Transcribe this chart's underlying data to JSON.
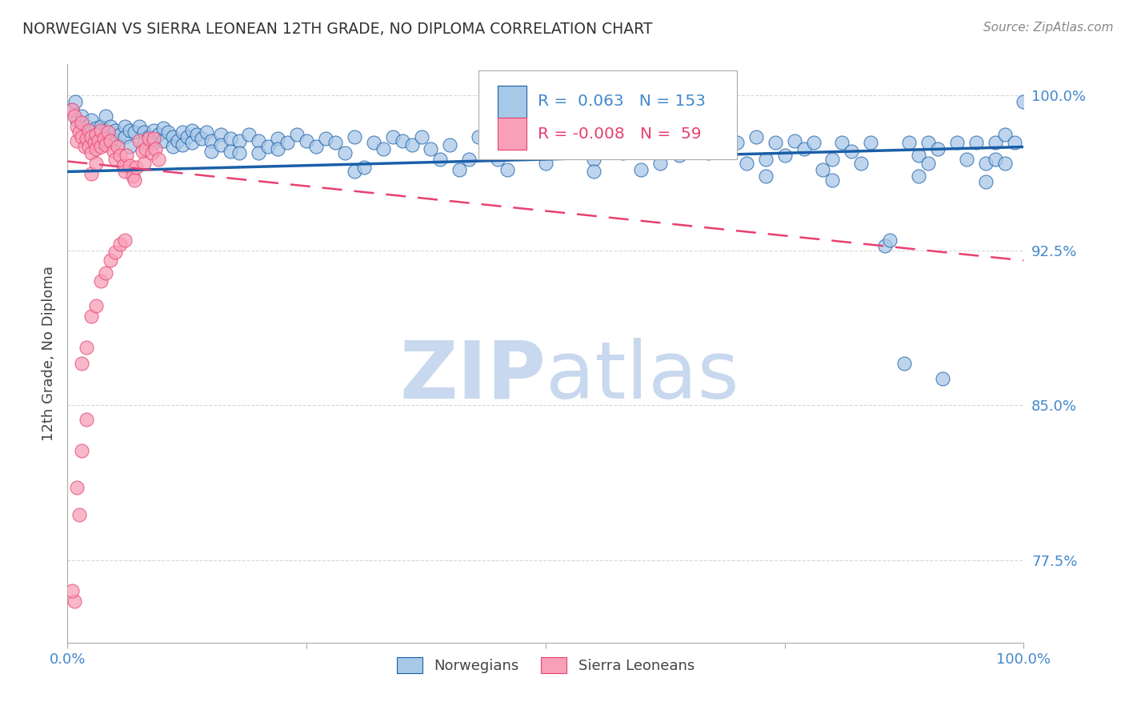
{
  "title": "NORWEGIAN VS SIERRA LEONEAN 12TH GRADE, NO DIPLOMA CORRELATION CHART",
  "source_text": "Source: ZipAtlas.com",
  "ylabel": "12th Grade, No Diploma",
  "legend_labels": [
    "Norwegians",
    "Sierra Leoneans"
  ],
  "xlim": [
    0.0,
    1.0
  ],
  "ylim": [
    0.735,
    1.015
  ],
  "yticks": [
    0.775,
    0.85,
    0.925,
    1.0
  ],
  "ytick_labels": [
    "77.5%",
    "85.0%",
    "92.5%",
    "100.0%"
  ],
  "xtick_labels": [
    "0.0%",
    "100.0%"
  ],
  "r_norwegian": 0.063,
  "n_norwegian": 153,
  "r_sierraleone": -0.008,
  "n_sierraleone": 59,
  "blue_color": "#a8c8e8",
  "blue_line_color": "#1a5fa8",
  "pink_color": "#f8a0b8",
  "pink_line_color": "#e84070",
  "grid_color": "#cccccc",
  "watermark_color": "#c8d8ee",
  "title_color": "#333333",
  "axis_label_color": "#4488cc",
  "norw_trend_x": [
    0.0,
    1.0
  ],
  "norw_trend_y": [
    0.963,
    0.975
  ],
  "sl_trend_x": [
    0.0,
    1.0
  ],
  "sl_trend_y": [
    0.968,
    0.92
  ],
  "norwegian_points": [
    [
      0.005,
      0.993
    ],
    [
      0.008,
      0.997
    ],
    [
      0.01,
      0.988
    ],
    [
      0.015,
      0.99
    ],
    [
      0.02,
      0.985
    ],
    [
      0.025,
      0.988
    ],
    [
      0.03,
      0.984
    ],
    [
      0.03,
      0.978
    ],
    [
      0.035,
      0.985
    ],
    [
      0.04,
      0.983
    ],
    [
      0.04,
      0.977
    ],
    [
      0.04,
      0.99
    ],
    [
      0.045,
      0.985
    ],
    [
      0.05,
      0.983
    ],
    [
      0.05,
      0.978
    ],
    [
      0.055,
      0.981
    ],
    [
      0.06,
      0.985
    ],
    [
      0.06,
      0.98
    ],
    [
      0.065,
      0.983
    ],
    [
      0.065,
      0.975
    ],
    [
      0.07,
      0.982
    ],
    [
      0.075,
      0.985
    ],
    [
      0.08,
      0.982
    ],
    [
      0.08,
      0.977
    ],
    [
      0.085,
      0.98
    ],
    [
      0.09,
      0.983
    ],
    [
      0.09,
      0.977
    ],
    [
      0.095,
      0.981
    ],
    [
      0.1,
      0.984
    ],
    [
      0.1,
      0.978
    ],
    [
      0.105,
      0.982
    ],
    [
      0.11,
      0.98
    ],
    [
      0.11,
      0.975
    ],
    [
      0.115,
      0.978
    ],
    [
      0.12,
      0.982
    ],
    [
      0.12,
      0.976
    ],
    [
      0.125,
      0.98
    ],
    [
      0.13,
      0.983
    ],
    [
      0.13,
      0.977
    ],
    [
      0.135,
      0.981
    ],
    [
      0.14,
      0.979
    ],
    [
      0.145,
      0.982
    ],
    [
      0.15,
      0.978
    ],
    [
      0.15,
      0.973
    ],
    [
      0.16,
      0.981
    ],
    [
      0.16,
      0.976
    ],
    [
      0.17,
      0.979
    ],
    [
      0.17,
      0.973
    ],
    [
      0.18,
      0.978
    ],
    [
      0.18,
      0.972
    ],
    [
      0.19,
      0.981
    ],
    [
      0.2,
      0.978
    ],
    [
      0.2,
      0.972
    ],
    [
      0.21,
      0.975
    ],
    [
      0.22,
      0.979
    ],
    [
      0.22,
      0.974
    ],
    [
      0.23,
      0.977
    ],
    [
      0.24,
      0.981
    ],
    [
      0.25,
      0.978
    ],
    [
      0.26,
      0.975
    ],
    [
      0.27,
      0.979
    ],
    [
      0.28,
      0.977
    ],
    [
      0.29,
      0.972
    ],
    [
      0.3,
      0.98
    ],
    [
      0.3,
      0.963
    ],
    [
      0.31,
      0.965
    ],
    [
      0.32,
      0.977
    ],
    [
      0.33,
      0.974
    ],
    [
      0.34,
      0.98
    ],
    [
      0.35,
      0.978
    ],
    [
      0.36,
      0.976
    ],
    [
      0.37,
      0.98
    ],
    [
      0.38,
      0.974
    ],
    [
      0.39,
      0.969
    ],
    [
      0.4,
      0.976
    ],
    [
      0.41,
      0.964
    ],
    [
      0.42,
      0.969
    ],
    [
      0.43,
      0.98
    ],
    [
      0.44,
      0.976
    ],
    [
      0.45,
      0.969
    ],
    [
      0.46,
      0.964
    ],
    [
      0.48,
      0.98
    ],
    [
      0.49,
      0.986
    ],
    [
      0.5,
      0.976
    ],
    [
      0.5,
      0.967
    ],
    [
      0.51,
      0.983
    ],
    [
      0.52,
      0.99
    ],
    [
      0.53,
      0.986
    ],
    [
      0.54,
      0.976
    ],
    [
      0.55,
      0.969
    ],
    [
      0.55,
      0.963
    ],
    [
      0.56,
      0.98
    ],
    [
      0.57,
      0.976
    ],
    [
      0.58,
      0.972
    ],
    [
      0.59,
      0.98
    ],
    [
      0.6,
      0.974
    ],
    [
      0.6,
      0.964
    ],
    [
      0.61,
      0.978
    ],
    [
      0.62,
      0.967
    ],
    [
      0.63,
      0.977
    ],
    [
      0.64,
      0.98
    ],
    [
      0.64,
      0.971
    ],
    [
      0.65,
      0.977
    ],
    [
      0.66,
      0.98
    ],
    [
      0.67,
      0.972
    ],
    [
      0.68,
      0.978
    ],
    [
      0.69,
      0.974
    ],
    [
      0.7,
      0.977
    ],
    [
      0.71,
      0.967
    ],
    [
      0.72,
      0.98
    ],
    [
      0.73,
      0.969
    ],
    [
      0.73,
      0.961
    ],
    [
      0.74,
      0.977
    ],
    [
      0.75,
      0.971
    ],
    [
      0.76,
      0.978
    ],
    [
      0.77,
      0.974
    ],
    [
      0.78,
      0.977
    ],
    [
      0.79,
      0.964
    ],
    [
      0.8,
      0.969
    ],
    [
      0.8,
      0.959
    ],
    [
      0.81,
      0.977
    ],
    [
      0.82,
      0.973
    ],
    [
      0.83,
      0.967
    ],
    [
      0.84,
      0.977
    ],
    [
      0.855,
      0.927
    ],
    [
      0.86,
      0.93
    ],
    [
      0.875,
      0.87
    ],
    [
      0.88,
      0.977
    ],
    [
      0.89,
      0.971
    ],
    [
      0.89,
      0.961
    ],
    [
      0.9,
      0.977
    ],
    [
      0.9,
      0.967
    ],
    [
      0.91,
      0.974
    ],
    [
      0.915,
      0.863
    ],
    [
      0.93,
      0.977
    ],
    [
      0.94,
      0.969
    ],
    [
      0.95,
      0.977
    ],
    [
      0.96,
      0.967
    ],
    [
      0.96,
      0.958
    ],
    [
      0.97,
      0.977
    ],
    [
      0.97,
      0.969
    ],
    [
      0.98,
      0.981
    ],
    [
      0.98,
      0.967
    ],
    [
      0.99,
      0.977
    ],
    [
      1.0,
      0.997
    ]
  ],
  "sierraleone_points": [
    [
      0.005,
      0.993
    ],
    [
      0.007,
      0.99
    ],
    [
      0.01,
      0.985
    ],
    [
      0.01,
      0.978
    ],
    [
      0.012,
      0.982
    ],
    [
      0.015,
      0.987
    ],
    [
      0.015,
      0.98
    ],
    [
      0.018,
      0.975
    ],
    [
      0.02,
      0.979
    ],
    [
      0.022,
      0.983
    ],
    [
      0.022,
      0.975
    ],
    [
      0.025,
      0.98
    ],
    [
      0.025,
      0.972
    ],
    [
      0.028,
      0.977
    ],
    [
      0.03,
      0.981
    ],
    [
      0.03,
      0.974
    ],
    [
      0.032,
      0.978
    ],
    [
      0.035,
      0.983
    ],
    [
      0.035,
      0.975
    ],
    [
      0.038,
      0.979
    ],
    [
      0.04,
      0.976
    ],
    [
      0.042,
      0.982
    ],
    [
      0.045,
      0.978
    ],
    [
      0.048,
      0.973
    ],
    [
      0.05,
      0.969
    ],
    [
      0.052,
      0.975
    ],
    [
      0.055,
      0.971
    ],
    [
      0.058,
      0.966
    ],
    [
      0.06,
      0.963
    ],
    [
      0.062,
      0.971
    ],
    [
      0.065,
      0.966
    ],
    [
      0.068,
      0.961
    ],
    [
      0.07,
      0.959
    ],
    [
      0.072,
      0.965
    ],
    [
      0.075,
      0.978
    ],
    [
      0.078,
      0.973
    ],
    [
      0.08,
      0.967
    ],
    [
      0.082,
      0.974
    ],
    [
      0.085,
      0.979
    ],
    [
      0.088,
      0.972
    ],
    [
      0.09,
      0.979
    ],
    [
      0.092,
      0.974
    ],
    [
      0.095,
      0.969
    ],
    [
      0.015,
      0.87
    ],
    [
      0.02,
      0.878
    ],
    [
      0.025,
      0.893
    ],
    [
      0.03,
      0.898
    ],
    [
      0.035,
      0.91
    ],
    [
      0.04,
      0.914
    ],
    [
      0.045,
      0.92
    ],
    [
      0.05,
      0.924
    ],
    [
      0.055,
      0.928
    ],
    [
      0.06,
      0.93
    ],
    [
      0.02,
      0.843
    ],
    [
      0.015,
      0.828
    ],
    [
      0.01,
      0.81
    ],
    [
      0.007,
      0.755
    ],
    [
      0.005,
      0.76
    ],
    [
      0.012,
      0.797
    ],
    [
      0.025,
      0.962
    ],
    [
      0.03,
      0.967
    ]
  ]
}
